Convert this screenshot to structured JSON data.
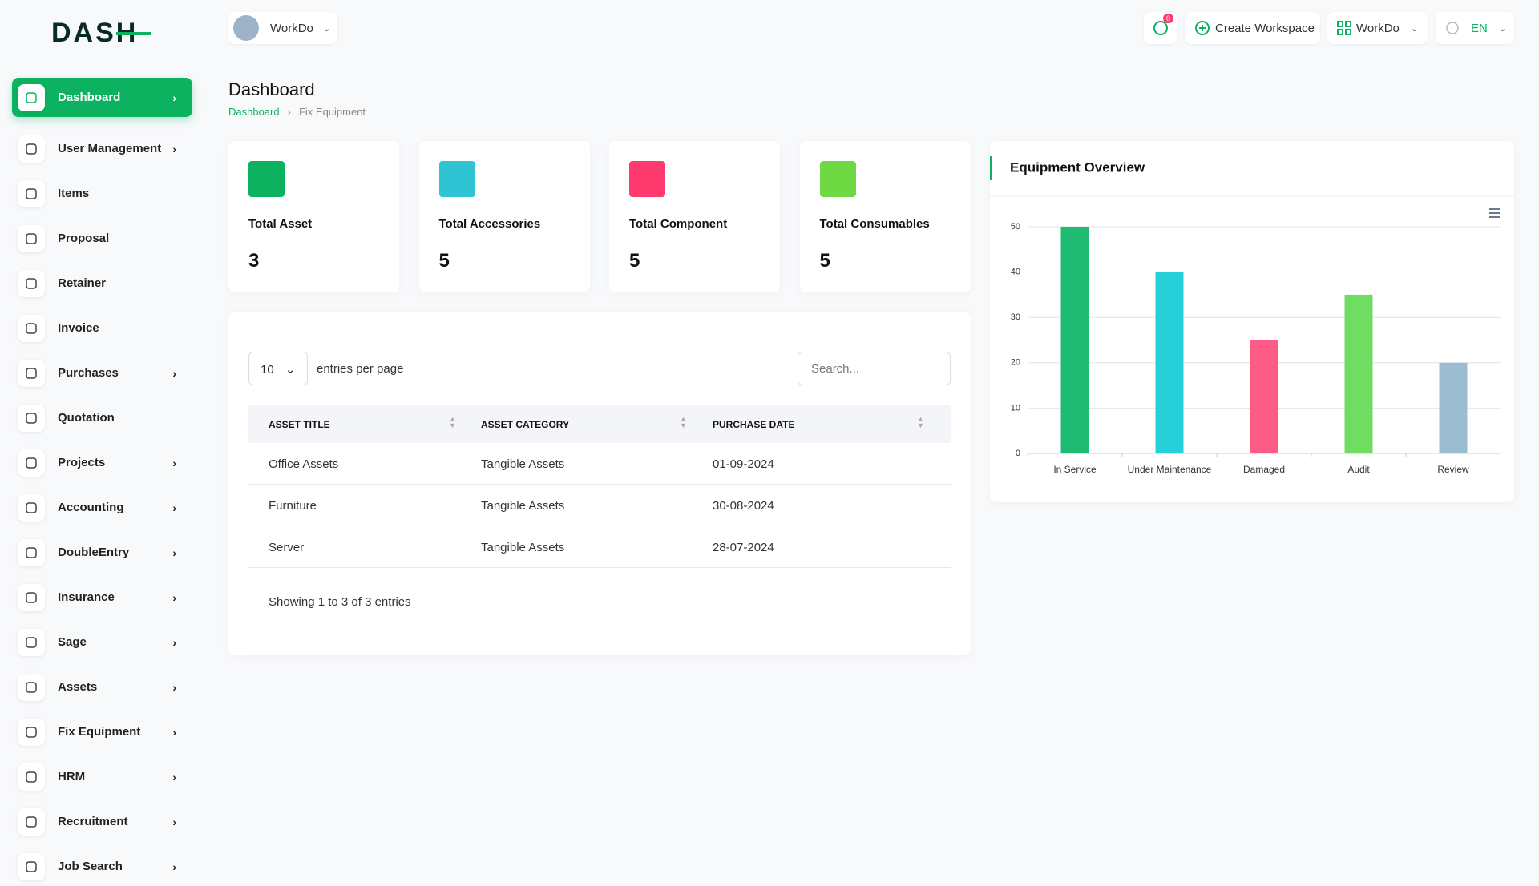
{
  "brand": "DASH",
  "header": {
    "workspace": "WorkDo",
    "notifications": "0",
    "create_workspace": "Create Workspace",
    "company": "WorkDo",
    "language": "EN"
  },
  "sidebar": [
    {
      "label": "Dashboard",
      "has_submenu": true,
      "active": true
    },
    {
      "label": "User Management",
      "has_submenu": true
    },
    {
      "label": "Items",
      "has_submenu": false
    },
    {
      "label": "Proposal",
      "has_submenu": false
    },
    {
      "label": "Retainer",
      "has_submenu": false
    },
    {
      "label": "Invoice",
      "has_submenu": false
    },
    {
      "label": "Purchases",
      "has_submenu": true
    },
    {
      "label": "Quotation",
      "has_submenu": false
    },
    {
      "label": "Projects",
      "has_submenu": true
    },
    {
      "label": "Accounting",
      "has_submenu": true
    },
    {
      "label": "DoubleEntry",
      "has_submenu": true
    },
    {
      "label": "Insurance",
      "has_submenu": true
    },
    {
      "label": "Sage",
      "has_submenu": true
    },
    {
      "label": "Assets",
      "has_submenu": true
    },
    {
      "label": "Fix Equipment",
      "has_submenu": true
    },
    {
      "label": "HRM",
      "has_submenu": true
    },
    {
      "label": "Recruitment",
      "has_submenu": true
    },
    {
      "label": "Job Search",
      "has_submenu": true
    }
  ],
  "page_title": "Dashboard",
  "breadcrumb": [
    "Dashboard",
    "Fix Equipment"
  ],
  "stats": [
    {
      "label": "Total Asset",
      "value": "3",
      "color": "#0cb260"
    },
    {
      "label": "Total Accessories",
      "value": "5",
      "color": "#2ec4d4"
    },
    {
      "label": "Total Component",
      "value": "5",
      "color": "#ff3a6e"
    },
    {
      "label": "Total Consumables",
      "value": "5",
      "color": "#6fd943"
    }
  ],
  "table": {
    "page_size": "10",
    "page_size_label": "entries per page",
    "search_placeholder": "Search...",
    "columns": [
      "ASSET TITLE",
      "ASSET CATEGORY",
      "PURCHASE DATE"
    ],
    "rows": [
      [
        "Office Assets",
        "Tangible Assets",
        "01-09-2024"
      ],
      [
        "Furniture",
        "Tangible Assets",
        "30-08-2024"
      ],
      [
        "Server",
        "Tangible Assets",
        "28-07-2024"
      ]
    ],
    "footer": "Showing 1 to 3 of 3 entries"
  },
  "chart_data": {
    "type": "bar",
    "title": "Equipment Overview",
    "categories": [
      "In Service",
      "Under Maintenance",
      "Damaged",
      "Audit",
      "Review"
    ],
    "values": [
      50,
      40,
      25,
      35,
      20
    ],
    "colors": [
      "#1fbb73",
      "#26d0d9",
      "#ff5b87",
      "#70dc62",
      "#9cbcd2"
    ],
    "ylim": [
      0,
      50
    ],
    "yticks": [
      0,
      10,
      20,
      30,
      40,
      50
    ],
    "grid": true
  }
}
